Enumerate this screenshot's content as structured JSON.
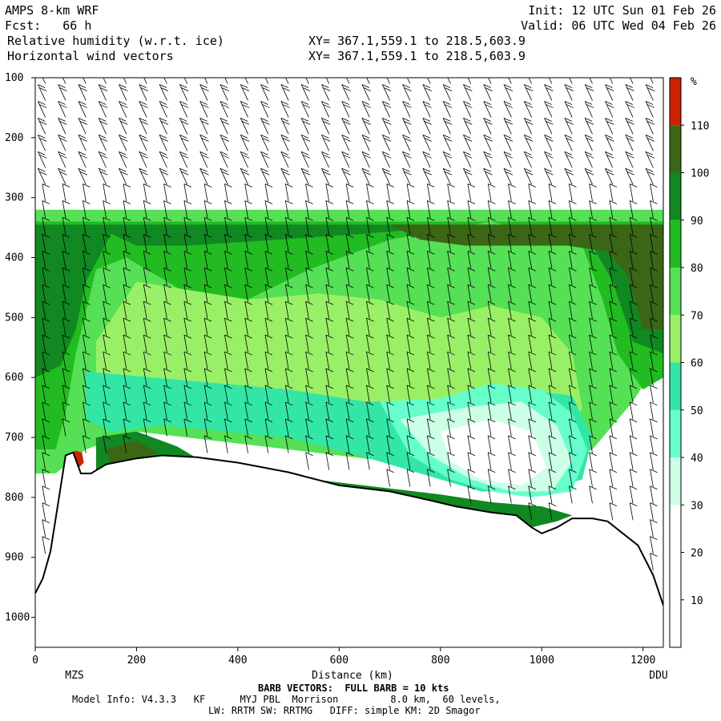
{
  "header": {
    "model": "AMPS 8-km WRF",
    "init": "Init: 12 UTC Sun 01 Feb 26",
    "fcst": "Fcst:   66 h",
    "valid": "Valid: 06 UTC Wed 04 Feb 26",
    "field1": "Relative humidity (w.r.t. ice)",
    "field2": "Horizontal wind vectors",
    "xy1": "XY= 367.1,559.1 to 218.5,603.9",
    "xy2": "XY= 367.1,559.1 to 218.5,603.9"
  },
  "footer": {
    "barb_note": "BARB VECTORS:  FULL BARB = 10 kts",
    "model_info": "Model Info: V4.3.3   KF      MYJ PBL  Morrison         8.0 km,  60 levels,",
    "model_info2": "LW: RRTM SW: RRTMG   DIFF: simple KM: 2D Smagor"
  },
  "chart_data": {
    "type": "heatmap",
    "title": "Relative humidity (w.r.t. ice)",
    "xlabel": "Distance (km)",
    "ylabel": "",
    "xlim": [
      0,
      1240
    ],
    "ylim": [
      1050,
      100
    ],
    "xticks": [
      0,
      200,
      400,
      600,
      800,
      1000,
      1200
    ],
    "yticks": [
      100,
      200,
      300,
      400,
      500,
      600,
      700,
      800,
      900,
      1000
    ],
    "endpoints": {
      "left": "MZS",
      "right": "DDU"
    },
    "colorbar": {
      "unit": "%",
      "levels": [
        10,
        20,
        30,
        40,
        50,
        60,
        70,
        80,
        90,
        100,
        110
      ],
      "colors": [
        "#ffffff",
        "#ffffff",
        "#ffffff",
        "#ccffe6",
        "#66ffcc",
        "#33e6a6",
        "#99f066",
        "#55e055",
        "#22bb22",
        "#118822",
        "#3b6616",
        "#cc2200"
      ]
    },
    "terrain": [
      {
        "x": 0,
        "p": 960
      },
      {
        "x": 15,
        "p": 935
      },
      {
        "x": 30,
        "p": 890
      },
      {
        "x": 45,
        "p": 810
      },
      {
        "x": 60,
        "p": 730
      },
      {
        "x": 75,
        "p": 725
      },
      {
        "x": 90,
        "p": 760
      },
      {
        "x": 110,
        "p": 760
      },
      {
        "x": 140,
        "p": 745
      },
      {
        "x": 200,
        "p": 735
      },
      {
        "x": 250,
        "p": 730
      },
      {
        "x": 320,
        "p": 733
      },
      {
        "x": 400,
        "p": 742
      },
      {
        "x": 500,
        "p": 758
      },
      {
        "x": 600,
        "p": 780
      },
      {
        "x": 700,
        "p": 790
      },
      {
        "x": 780,
        "p": 805
      },
      {
        "x": 830,
        "p": 815
      },
      {
        "x": 900,
        "p": 825
      },
      {
        "x": 950,
        "p": 830
      },
      {
        "x": 980,
        "p": 850
      },
      {
        "x": 1000,
        "p": 860
      },
      {
        "x": 1030,
        "p": 850
      },
      {
        "x": 1060,
        "p": 835
      },
      {
        "x": 1100,
        "p": 835
      },
      {
        "x": 1130,
        "p": 840
      },
      {
        "x": 1160,
        "p": 860
      },
      {
        "x": 1190,
        "p": 880
      },
      {
        "x": 1220,
        "p": 930
      },
      {
        "x": 1240,
        "p": 980
      }
    ],
    "rh_zones": [
      {
        "level": "70-80",
        "points": [
          [
            0,
            320
          ],
          [
            1240,
            320
          ],
          [
            1240,
            560
          ],
          [
            1180,
            640
          ],
          [
            1100,
            720
          ],
          [
            900,
            770
          ],
          [
            700,
            740
          ],
          [
            500,
            720
          ],
          [
            300,
            700
          ],
          [
            200,
            690
          ],
          [
            100,
            720
          ],
          [
            40,
            760
          ],
          [
            0,
            760
          ]
        ]
      },
      {
        "level": "80-90",
        "points": [
          [
            0,
            340
          ],
          [
            1240,
            340
          ],
          [
            1240,
            600
          ],
          [
            1200,
            620
          ],
          [
            1150,
            560
          ],
          [
            1120,
            470
          ],
          [
            1080,
            380
          ],
          [
            900,
            340
          ],
          [
            700,
            370
          ],
          [
            540,
            420
          ],
          [
            420,
            470
          ],
          [
            300,
            460
          ],
          [
            180,
            400
          ],
          [
            120,
            420
          ],
          [
            80,
            560
          ],
          [
            60,
            660
          ],
          [
            40,
            720
          ],
          [
            0,
            720
          ]
        ]
      },
      {
        "level": "90-100",
        "points": [
          [
            0,
            345
          ],
          [
            1240,
            345
          ],
          [
            1240,
            560
          ],
          [
            1180,
            540
          ],
          [
            1140,
            440
          ],
          [
            1100,
            380
          ],
          [
            950,
            350
          ],
          [
            800,
            350
          ],
          [
            650,
            360
          ],
          [
            480,
            370
          ],
          [
            300,
            380
          ],
          [
            200,
            380
          ],
          [
            150,
            360
          ],
          [
            100,
            440
          ],
          [
            80,
            520
          ],
          [
            50,
            580
          ],
          [
            0,
            600
          ]
        ]
      },
      {
        "level": "100-110",
        "points": [
          [
            700,
            345
          ],
          [
            1240,
            345
          ],
          [
            1240,
            520
          ],
          [
            1200,
            520
          ],
          [
            1170,
            430
          ],
          [
            1130,
            390
          ],
          [
            1050,
            380
          ],
          [
            950,
            380
          ],
          [
            850,
            380
          ],
          [
            760,
            370
          ]
        ]
      },
      {
        "level": "60-70",
        "points": [
          [
            200,
            440
          ],
          [
            420,
            470
          ],
          [
            560,
            460
          ],
          [
            680,
            470
          ],
          [
            800,
            500
          ],
          [
            900,
            480
          ],
          [
            1000,
            500
          ],
          [
            1060,
            560
          ],
          [
            1080,
            650
          ],
          [
            1060,
            700
          ],
          [
            950,
            720
          ],
          [
            800,
            720
          ],
          [
            700,
            690
          ],
          [
            560,
            660
          ],
          [
            420,
            650
          ],
          [
            300,
            640
          ],
          [
            200,
            620
          ],
          [
            120,
            600
          ],
          [
            120,
            540
          ]
        ]
      },
      {
        "level": "50-60",
        "points": [
          [
            100,
            590
          ],
          [
            300,
            605
          ],
          [
            500,
            620
          ],
          [
            650,
            640
          ],
          [
            800,
            640
          ],
          [
            960,
            620
          ],
          [
            1060,
            630
          ],
          [
            1100,
            700
          ],
          [
            1080,
            770
          ],
          [
            1000,
            790
          ],
          [
            880,
            790
          ],
          [
            760,
            760
          ],
          [
            640,
            730
          ],
          [
            500,
            700
          ],
          [
            380,
            690
          ],
          [
            250,
            680
          ],
          [
            150,
            690
          ],
          [
            100,
            670
          ]
        ]
      },
      {
        "level": "40-50",
        "points": [
          [
            680,
            640
          ],
          [
            800,
            635
          ],
          [
            900,
            610
          ],
          [
            1000,
            620
          ],
          [
            1060,
            660
          ],
          [
            1090,
            720
          ],
          [
            1060,
            790
          ],
          [
            980,
            800
          ],
          [
            900,
            790
          ],
          [
            820,
            770
          ],
          [
            740,
            730
          ]
        ]
      },
      {
        "level": "30-40",
        "points": [
          [
            720,
            670
          ],
          [
            850,
            650
          ],
          [
            960,
            640
          ],
          [
            1030,
            680
          ],
          [
            1060,
            740
          ],
          [
            1020,
            790
          ],
          [
            940,
            790
          ],
          [
            860,
            770
          ],
          [
            780,
            730
          ]
        ]
      },
      {
        "level": "20-30",
        "points": [
          [
            800,
            690
          ],
          [
            900,
            670
          ],
          [
            980,
            690
          ],
          [
            1010,
            750
          ],
          [
            960,
            780
          ],
          [
            880,
            770
          ],
          [
            820,
            740
          ]
        ]
      },
      {
        "level": "90-100",
        "points": [
          [
            120,
            700
          ],
          [
            200,
            690
          ],
          [
            280,
            715
          ],
          [
            320,
            735
          ],
          [
            250,
            740
          ],
          [
            160,
            755
          ],
          [
            120,
            760
          ]
        ]
      },
      {
        "level": "100-110",
        "points": [
          [
            140,
            720
          ],
          [
            200,
            705
          ],
          [
            240,
            725
          ],
          [
            200,
            742
          ],
          [
            150,
            752
          ]
        ]
      },
      {
        "level": "110+",
        "points": [
          [
            68,
            735
          ],
          [
            78,
            722
          ],
          [
            92,
            725
          ],
          [
            96,
            742
          ],
          [
            84,
            752
          ],
          [
            72,
            748
          ]
        ]
      },
      {
        "level": "90-100",
        "points": [
          [
            450,
            780
          ],
          [
            600,
            790
          ],
          [
            700,
            800
          ],
          [
            800,
            810
          ],
          [
            900,
            830
          ],
          [
            980,
            850
          ],
          [
            1030,
            840
          ],
          [
            1060,
            830
          ],
          [
            1000,
            815
          ],
          [
            900,
            808
          ],
          [
            800,
            795
          ],
          [
            700,
            785
          ],
          [
            600,
            775
          ],
          [
            500,
            765
          ]
        ]
      }
    ]
  }
}
